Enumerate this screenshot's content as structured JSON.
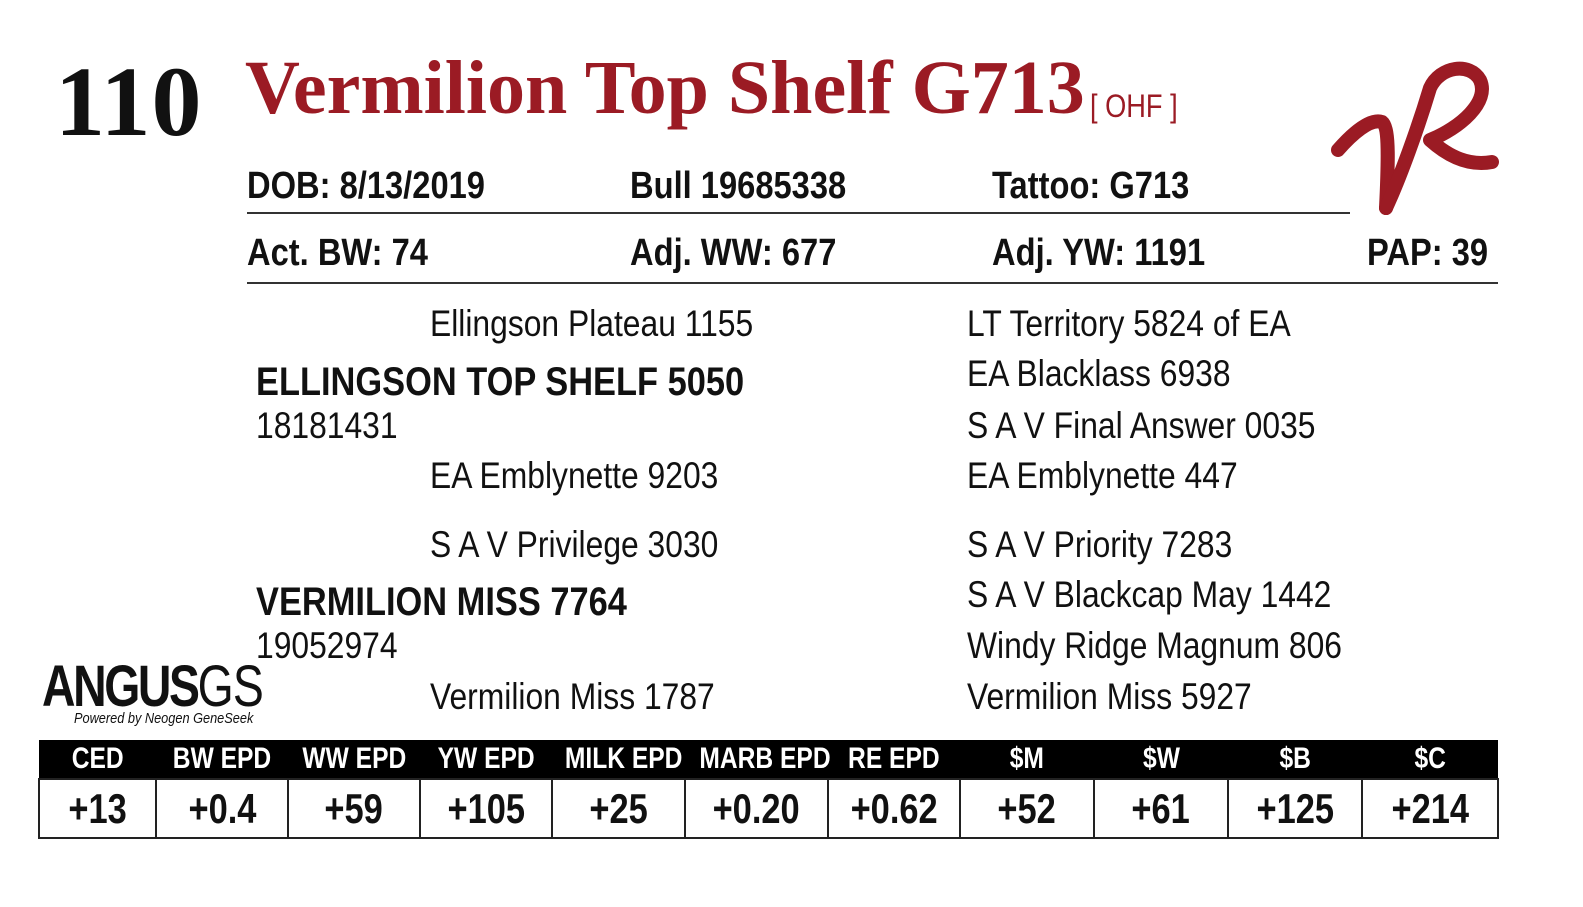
{
  "lot_number": "110",
  "animal_name": "Vermilion Top Shelf G713",
  "tag": "[ OHF ]",
  "brand_logo": "vermilion-vr-brand",
  "colors": {
    "accent": "#9b1b24",
    "text": "#111111"
  },
  "info": {
    "dob": "DOB: 8/13/2019",
    "reg": "Bull   19685338",
    "tattoo": "Tattoo:  G713",
    "act_bw": "Act. BW: 74",
    "adj_ww": "Adj. WW: 677",
    "adj_yw": "Adj. YW: 1191",
    "pap": "PAP: 39"
  },
  "pedigree": {
    "sire": {
      "name": "ELLINGSON TOP SHELF 5050",
      "reg": "18181431",
      "sire": "Ellingson Plateau 1155",
      "dam": "EA Emblynette 9203",
      "great_grandparents": [
        "LT Territory 5824 of EA",
        "EA Blacklass 6938",
        "S A V Final Answer 0035",
        "EA Emblynette 447"
      ]
    },
    "dam": {
      "name": "VERMILION MISS 7764",
      "reg": "19052974",
      "sire": "S A V Privilege 3030",
      "dam": "Vermilion Miss 1787",
      "great_grandparents": [
        "S A V Priority 7283",
        "S A V Blackcap May 1442",
        "Windy Ridge Magnum 806",
        "Vermilion Miss 5927"
      ]
    }
  },
  "logo": {
    "main": "ANGUS",
    "suffix": "GS",
    "sub": "Powered by Neogen GeneSeek"
  },
  "epd_table": {
    "headers": [
      "CED",
      "BW EPD",
      "WW EPD",
      "YW EPD",
      "MILK EPD",
      "MARB EPD",
      "RE EPD",
      "$M",
      "$W",
      "$B",
      "$C"
    ],
    "values": [
      "+13",
      "+0.4",
      "+59",
      "+105",
      "+25",
      "+0.20",
      "+0.62",
      "+52",
      "+61",
      "+125",
      "+214"
    ]
  }
}
